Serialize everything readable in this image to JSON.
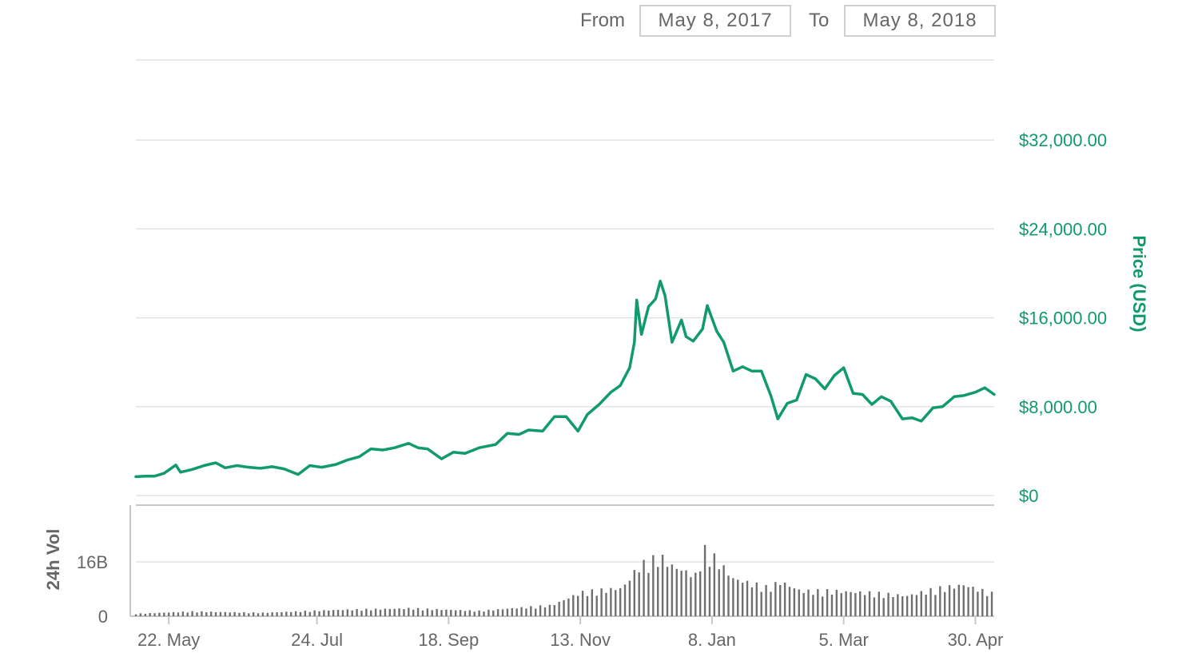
{
  "date_range": {
    "from_label": "From",
    "from_value": "May 8, 2017",
    "to_label": "To",
    "to_value": "May 8, 2018"
  },
  "colors": {
    "price_line": "#119a6e",
    "volume_bar": "#6f6f6f",
    "grid": "#e3e3e3",
    "axis_text": "#666666",
    "price_axis_text": "#119a6e"
  },
  "chart_data": {
    "type": "line",
    "x_axis": {
      "type": "date",
      "range": [
        "2017-05-08",
        "2018-05-08"
      ],
      "tick_labels": [
        "22. May",
        "24. Jul",
        "18. Sep",
        "13. Nov",
        "8. Jan",
        "5. Mar",
        "30. Apr"
      ],
      "tick_dates": [
        "2017-05-22",
        "2017-07-24",
        "2017-09-18",
        "2017-11-13",
        "2018-01-08",
        "2018-03-05",
        "2018-04-30"
      ]
    },
    "price_axis": {
      "label": "Price (USD)",
      "position": "right",
      "range": [
        0,
        40000
      ],
      "tick_labels": [
        "$0",
        "$8,000.00",
        "$16,000.00",
        "$24,000.00",
        "$32,000.00"
      ],
      "tick_values": [
        0,
        8000,
        16000,
        24000,
        32000
      ]
    },
    "volume_axis": {
      "label": "24h Vol",
      "position": "left",
      "range": [
        0,
        25000000000
      ],
      "tick_labels": [
        "0",
        "16B"
      ],
      "tick_values": [
        0,
        16000000000
      ]
    },
    "series": [
      {
        "name": "Price (USD)",
        "type": "line",
        "points": [
          [
            "2017-05-08",
            1700
          ],
          [
            "2017-05-12",
            1750
          ],
          [
            "2017-05-16",
            1750
          ],
          [
            "2017-05-20",
            2000
          ],
          [
            "2017-05-25",
            2750
          ],
          [
            "2017-05-27",
            2100
          ],
          [
            "2017-06-01",
            2350
          ],
          [
            "2017-06-06",
            2700
          ],
          [
            "2017-06-11",
            2950
          ],
          [
            "2017-06-15",
            2500
          ],
          [
            "2017-06-20",
            2700
          ],
          [
            "2017-06-25",
            2550
          ],
          [
            "2017-06-30",
            2450
          ],
          [
            "2017-07-05",
            2600
          ],
          [
            "2017-07-10",
            2400
          ],
          [
            "2017-07-16",
            1900
          ],
          [
            "2017-07-21",
            2700
          ],
          [
            "2017-07-26",
            2550
          ],
          [
            "2017-08-01",
            2800
          ],
          [
            "2017-08-06",
            3200
          ],
          [
            "2017-08-11",
            3500
          ],
          [
            "2017-08-16",
            4200
          ],
          [
            "2017-08-21",
            4100
          ],
          [
            "2017-08-26",
            4300
          ],
          [
            "2017-09-01",
            4700
          ],
          [
            "2017-09-05",
            4300
          ],
          [
            "2017-09-09",
            4200
          ],
          [
            "2017-09-15",
            3300
          ],
          [
            "2017-09-20",
            3900
          ],
          [
            "2017-09-25",
            3800
          ],
          [
            "2017-10-01",
            4300
          ],
          [
            "2017-10-08",
            4600
          ],
          [
            "2017-10-13",
            5600
          ],
          [
            "2017-10-18",
            5500
          ],
          [
            "2017-10-22",
            5900
          ],
          [
            "2017-10-28",
            5800
          ],
          [
            "2017-11-02",
            7100
          ],
          [
            "2017-11-07",
            7100
          ],
          [
            "2017-11-12",
            5800
          ],
          [
            "2017-11-16",
            7300
          ],
          [
            "2017-11-21",
            8200
          ],
          [
            "2017-11-26",
            9300
          ],
          [
            "2017-11-30",
            9900
          ],
          [
            "2017-12-04",
            11500
          ],
          [
            "2017-12-06",
            13800
          ],
          [
            "2017-12-07",
            17600
          ],
          [
            "2017-12-09",
            14500
          ],
          [
            "2017-12-12",
            17000
          ],
          [
            "2017-12-15",
            17700
          ],
          [
            "2017-12-17",
            19300
          ],
          [
            "2017-12-19",
            18000
          ],
          [
            "2017-12-22",
            13800
          ],
          [
            "2017-12-26",
            15800
          ],
          [
            "2017-12-28",
            14300
          ],
          [
            "2017-12-31",
            13900
          ],
          [
            "2018-01-04",
            15000
          ],
          [
            "2018-01-06",
            17100
          ],
          [
            "2018-01-10",
            14800
          ],
          [
            "2018-01-13",
            13800
          ],
          [
            "2018-01-17",
            11200
          ],
          [
            "2018-01-21",
            11600
          ],
          [
            "2018-01-25",
            11200
          ],
          [
            "2018-01-29",
            11200
          ],
          [
            "2018-02-02",
            9000
          ],
          [
            "2018-02-05",
            6900
          ],
          [
            "2018-02-09",
            8300
          ],
          [
            "2018-02-13",
            8600
          ],
          [
            "2018-02-17",
            10900
          ],
          [
            "2018-02-21",
            10500
          ],
          [
            "2018-02-25",
            9600
          ],
          [
            "2018-03-01",
            10800
          ],
          [
            "2018-03-05",
            11500
          ],
          [
            "2018-03-09",
            9200
          ],
          [
            "2018-03-13",
            9100
          ],
          [
            "2018-03-17",
            8200
          ],
          [
            "2018-03-21",
            8900
          ],
          [
            "2018-03-25",
            8500
          ],
          [
            "2018-03-30",
            6900
          ],
          [
            "2018-04-03",
            7000
          ],
          [
            "2018-04-07",
            6700
          ],
          [
            "2018-04-12",
            7900
          ],
          [
            "2018-04-16",
            8000
          ],
          [
            "2018-04-21",
            8900
          ],
          [
            "2018-04-25",
            9000
          ],
          [
            "2018-04-30",
            9300
          ],
          [
            "2018-05-04",
            9700
          ],
          [
            "2018-05-08",
            9100
          ]
        ]
      },
      {
        "name": "24h Vol",
        "type": "bar",
        "points": [
          [
            "2017-05-08",
            800000000
          ],
          [
            "2017-06-01",
            1500000000
          ],
          [
            "2017-07-01",
            1100000000
          ],
          [
            "2017-08-01",
            2000000000
          ],
          [
            "2017-09-01",
            2500000000
          ],
          [
            "2017-10-01",
            1700000000
          ],
          [
            "2017-11-01",
            3500000000
          ],
          [
            "2017-11-13",
            7500000000
          ],
          [
            "2017-12-01",
            9000000000
          ],
          [
            "2017-12-08",
            16000000000
          ],
          [
            "2017-12-17",
            19000000000
          ],
          [
            "2017-12-22",
            16000000000
          ],
          [
            "2018-01-01",
            13000000000
          ],
          [
            "2018-01-05",
            21000000000
          ],
          [
            "2018-01-10",
            18000000000
          ],
          [
            "2018-01-17",
            12000000000
          ],
          [
            "2018-02-01",
            9000000000
          ],
          [
            "2018-02-06",
            11000000000
          ],
          [
            "2018-02-15",
            8000000000
          ],
          [
            "2018-03-01",
            8000000000
          ],
          [
            "2018-03-15",
            7500000000
          ],
          [
            "2018-04-01",
            6500000000
          ],
          [
            "2018-04-12",
            8500000000
          ],
          [
            "2018-04-25",
            10000000000
          ],
          [
            "2018-05-08",
            7000000000
          ]
        ]
      }
    ],
    "grid": true,
    "legend": "none"
  }
}
